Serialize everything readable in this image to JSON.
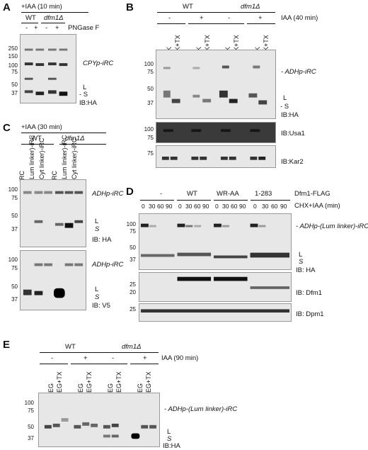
{
  "panels": {
    "A": {
      "letter": "A",
      "treatment": "+IAA (10 min)",
      "strains": [
        "WT",
        "dfm1Δ"
      ],
      "lanes": [
        "-",
        "+",
        "-",
        "+"
      ],
      "lane_label": "PNGase F",
      "markers": [
        "250",
        "150",
        "100",
        "75",
        "50",
        "37"
      ],
      "band_labels": {
        "top": "CPYp-iRC",
        "l": "L",
        "s": "- S",
        "ib": "IB:HA"
      }
    },
    "B": {
      "letter": "B",
      "strains": [
        "WT",
        "dfm1Δ"
      ],
      "iaa_signs": [
        "-",
        "+",
        "-",
        "+"
      ],
      "iaa_label": "IAA (40 min)",
      "lanes": [
        "-",
        "PK",
        "PK+TX",
        "-",
        "PK",
        "PK+TX",
        "-",
        "PK",
        "PK+TX",
        "-",
        "PK",
        "PK+TX"
      ],
      "markers_main": [
        "100",
        "75",
        "50",
        "37"
      ],
      "markers_usa1": [
        "100",
        "75"
      ],
      "markers_kar2": [
        "75"
      ],
      "band_labels": {
        "top": "- ADHp-iRC",
        "l": "L",
        "s": "- S",
        "ib_ha": "IB:HA",
        "ib_usa1": "IB:Usa1",
        "ib_kar2": "IB:Kar2"
      }
    },
    "C": {
      "letter": "C",
      "treatment": "+IAA (30 min)",
      "strains": [
        "WT",
        "dfm1Δ"
      ],
      "lanes": [
        "iRC",
        "(Lum linker)-iRC",
        "(Cyt linker)-iRC",
        "iRC",
        "(Lum linker)-iRC",
        "(Cyt linker)-iRC"
      ],
      "markers_ha": [
        "100",
        "75",
        "50",
        "37"
      ],
      "markers_v5": [
        "100",
        "75",
        "50",
        "37"
      ],
      "band_labels": {
        "top_ha": "ADHp-iRC",
        "l": "L",
        "s": "S",
        "ib_ha": "IB: HA",
        "top_v5": "ADHp-iRC",
        "l2": "L",
        "s2": "S",
        "ib_v5": "IB: V5"
      }
    },
    "D": {
      "letter": "D",
      "groups": [
        "-",
        "WT",
        "WR-AA",
        "1-283"
      ],
      "group_label": "Dfm1-FLAG",
      "timepoints": [
        "0",
        "30",
        "60",
        "90",
        "0",
        "30",
        "60",
        "90",
        "0",
        "30",
        "60",
        "90",
        "0",
        "30",
        "60",
        "90"
      ],
      "time_label": "CHX+IAA (min)",
      "markers_ha": [
        "100",
        "75",
        "50",
        "37"
      ],
      "markers_dfm1": [
        "25",
        "20"
      ],
      "markers_dpm1": [
        "25"
      ],
      "band_labels": {
        "top": "- ADHp-(Lum linker)-iRC",
        "l": "L",
        "s": "S",
        "ib_ha": "IB: HA",
        "ib_dfm1": "IB: Dfm1",
        "ib_dpm1": "IB: Dpm1"
      }
    },
    "E": {
      "letter": "E",
      "strains": [
        "WT",
        "dfm1Δ"
      ],
      "iaa_signs": [
        "-",
        "+",
        "-",
        "+"
      ],
      "iaa_label": "IAA (90 min)",
      "lanes": [
        "-",
        "PEG",
        "PEG+TX",
        "-",
        "PEG",
        "PEG+TX",
        "-",
        "PEG",
        "PEG+TX",
        "-",
        "PEG",
        "PEG+TX"
      ],
      "markers": [
        "100",
        "75",
        "50",
        "37"
      ],
      "band_labels": {
        "top": "- ADHp-(Lum linker)-iRC",
        "l": "L",
        "s": "S",
        "ib": "IB:HA"
      }
    }
  }
}
